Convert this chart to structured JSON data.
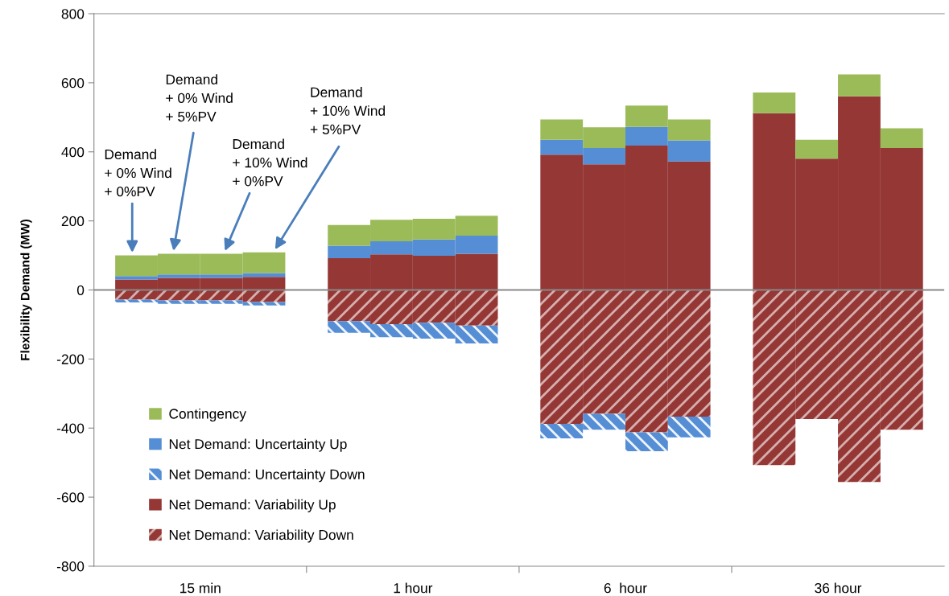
{
  "chart_data": {
    "type": "bar",
    "stacked": true,
    "categories": [
      null,
      null,
      null,
      null,
      null,
      null,
      null,
      null,
      null,
      null,
      null,
      null,
      null,
      null,
      null,
      null,
      null,
      null,
      null
    ],
    "series": [
      {
        "name": "Net Demand: Variability Up",
        "color": "#953735",
        "values": [
          30,
          35,
          35,
          38,
          null,
          92,
          103,
          99,
          105,
          null,
          392,
          364,
          418,
          372,
          null,
          512,
          380,
          561,
          411
        ]
      },
      {
        "name": "Net Demand: Uncertainty Up",
        "color": "#558ed5",
        "values": [
          10,
          10,
          10,
          11,
          null,
          36,
          38,
          47,
          52,
          null,
          43,
          47,
          54,
          61,
          null,
          null,
          null,
          null,
          null
        ]
      },
      {
        "name": "Contingency",
        "color": "#9bbb59",
        "values": [
          60,
          60,
          60,
          60,
          null,
          60,
          62,
          60,
          58,
          null,
          59,
          60,
          62,
          61,
          null,
          60,
          55,
          63,
          57
        ]
      },
      {
        "name": "Net Demand: Variability Down",
        "color": "#953735",
        "values": [
          -28,
          -30,
          -30,
          -35,
          null,
          -90,
          -99,
          -95,
          -103,
          null,
          -388,
          -359,
          -412,
          -367,
          null,
          -507,
          -374,
          -556,
          -405
        ]
      },
      {
        "name": "Net Demand: Uncertainty Down",
        "color": "#558ed5",
        "values": [
          -8,
          -10,
          -10,
          -10,
          null,
          -34,
          -38,
          -46,
          -52,
          null,
          -42,
          -46,
          -55,
          -60,
          null,
          null,
          null,
          null,
          null
        ]
      }
    ],
    "ylabel": "Flexibility Demand (MW)",
    "ylim": [
      -800,
      800
    ],
    "yticks": [
      -800,
      -600,
      -400,
      -200,
      0,
      200,
      400,
      600,
      800
    ],
    "legend": "bottom left",
    "annotations": [
      "15 min",
      "1 hour",
      "6  hour",
      "36 hour",
      "Demand\n+ 0% Wind\n+ 0%PV",
      "Demand\n+ 0% Wind\n+ 5%PV",
      "Demand\n+ 10% Wind\n+ 0%PV",
      "Demand\n+ 10% Wind\n+ 5%PV"
    ]
  }
}
